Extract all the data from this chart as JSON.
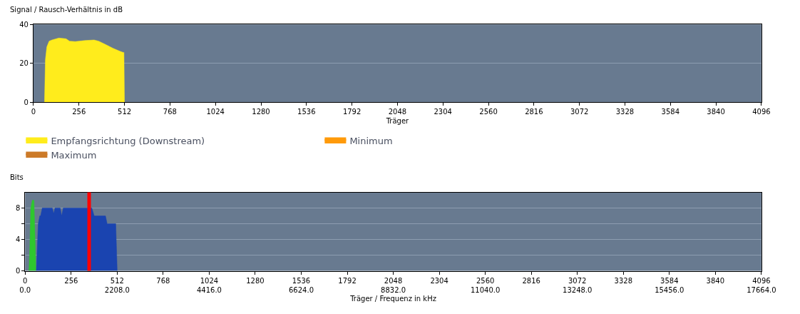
{
  "chart_data": [
    {
      "type": "area",
      "ylabel": "Signal / Rausch-Verhältnis in dB",
      "xlabel": "Träger",
      "xlim": [
        0,
        4096
      ],
      "xticks": [
        0,
        256,
        512,
        768,
        1024,
        1280,
        1536,
        1792,
        2048,
        2304,
        2560,
        2816,
        3072,
        3328,
        3584,
        3840,
        4096
      ],
      "ylim": [
        0,
        40
      ],
      "yticks": [
        0,
        20,
        40
      ],
      "grid": "y",
      "legend": "bottom",
      "series": [
        {
          "name": "Empfangsrichtung (Downstream)",
          "color": "#ffec1c",
          "x": [
            62,
            67,
            75,
            88,
            104,
            143,
            183,
            203,
            236,
            288,
            341,
            367,
            407,
            446,
            486,
            505,
            509,
            512
          ],
          "values": [
            0,
            21.8,
            28.4,
            31.4,
            32,
            33,
            32.6,
            31.4,
            31.2,
            31.7,
            32,
            31.4,
            29.6,
            27.8,
            26.2,
            25.6,
            25.6,
            0
          ]
        },
        {
          "name": "Minimum",
          "color": "#ff9a0a"
        },
        {
          "name": "Maximum",
          "color": "#cc7a28"
        }
      ]
    },
    {
      "type": "area",
      "ylabel": "Bits",
      "xlabel": "Träger / Frequenz in kHz",
      "xlim": [
        0,
        4096
      ],
      "xticks": [
        {
          "value": 0,
          "label": "0\n0.0"
        },
        256,
        {
          "value": 512,
          "label": "512\n2208.0"
        },
        768,
        {
          "value": 1024,
          "label": "1024\n4416.0"
        },
        1280,
        {
          "value": 1536,
          "label": "1536\n6624.0"
        },
        1792,
        {
          "value": 2048,
          "label": "2048\n8832.0"
        },
        2304,
        {
          "value": 2560,
          "label": "2560\n11040.0"
        },
        2816,
        {
          "value": 3072,
          "label": "3072\n13248.0"
        },
        3328,
        {
          "value": 3584,
          "label": "3584\n15456.0"
        },
        3840,
        {
          "value": 4096,
          "label": "4096\n17664.0"
        }
      ],
      "ylim": [
        0,
        10
      ],
      "yticks": [
        0,
        {
          "value": 2,
          "label": null
        },
        4,
        {
          "value": 6,
          "label": null
        },
        8
      ],
      "grid": "y",
      "legend": false,
      "series": [
        {
          "color": "#2ec72e",
          "x": [
            21,
            26,
            31,
            40,
            49,
            60
          ],
          "values": [
            0,
            3,
            8,
            9,
            9,
            0
          ]
        },
        {
          "color": "#1a44b0",
          "x": [
            62,
            73,
            81,
            86,
            95,
            151,
            159,
            166,
            195,
            203,
            212,
            371,
            384,
            447,
            456,
            504,
            512
          ],
          "values": [
            0,
            6,
            7,
            7,
            8,
            8,
            7.3,
            8,
            8,
            7,
            8,
            8,
            7,
            7,
            6,
            6,
            0
          ]
        }
      ],
      "ref_lines": [
        {
          "axis": "x",
          "value": 356,
          "color": "#ff0000"
        }
      ]
    }
  ]
}
